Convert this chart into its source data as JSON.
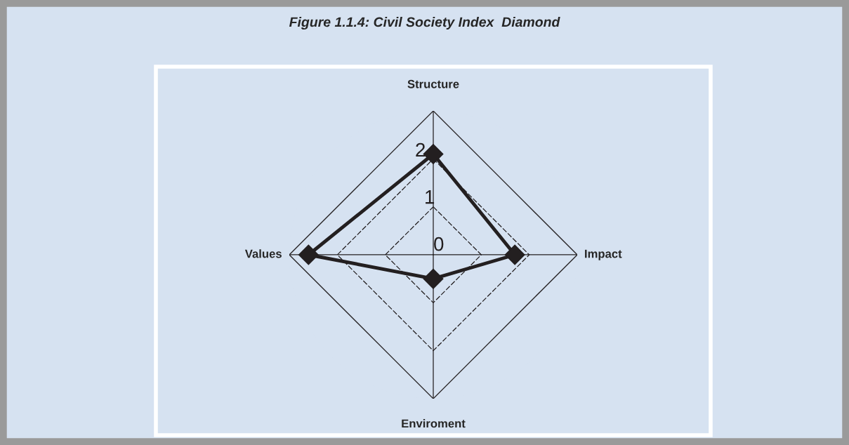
{
  "chart_data": {
    "type": "radar",
    "title": "Figure 1.1.4: Civil Society Index  Diamond",
    "categories": [
      "Structure",
      "Impact",
      "Enviroment",
      "Values"
    ],
    "series": [
      {
        "color": "#231f20",
        "values": [
          2.1,
          1.7,
          0.5,
          2.6
        ]
      }
    ],
    "ylim": [
      0,
      3
    ],
    "yticks": [
      0,
      1,
      2
    ],
    "grid": true,
    "marker": "diamond",
    "line_style": "solid"
  }
}
